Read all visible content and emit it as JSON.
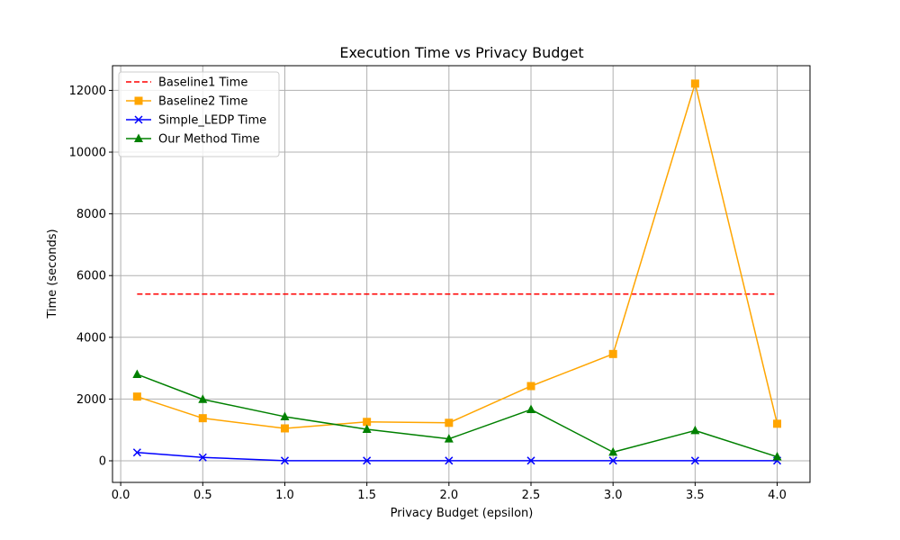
{
  "chart_data": {
    "type": "line",
    "title": "Execution Time vs Privacy Budget",
    "xlabel": "Privacy Budget (epsilon)",
    "ylabel": "Time (seconds)",
    "xlim": [
      -0.05,
      4.2
    ],
    "ylim": [
      -700,
      12800
    ],
    "x_ticks": [
      0.0,
      0.5,
      1.0,
      1.5,
      2.0,
      2.5,
      3.0,
      3.5,
      4.0
    ],
    "x_tick_labels": [
      "0.0",
      "0.5",
      "1.0",
      "1.5",
      "2.0",
      "2.5",
      "3.0",
      "3.5",
      "4.0"
    ],
    "y_ticks": [
      0,
      2000,
      4000,
      6000,
      8000,
      10000,
      12000
    ],
    "y_tick_labels": [
      "0",
      "2000",
      "4000",
      "6000",
      "8000",
      "10000",
      "12000"
    ],
    "grid": true,
    "legend_position": "top-left",
    "x": [
      0.1,
      0.5,
      1.0,
      1.5,
      2.0,
      2.5,
      3.0,
      3.5,
      4.0
    ],
    "series": [
      {
        "name": "Baseline1 Time",
        "color": "#ff0000",
        "line_style": "dashed",
        "marker": "none",
        "x": [
          0.1,
          4.0
        ],
        "values": [
          5400,
          5400
        ]
      },
      {
        "name": "Baseline2 Time",
        "color": "#ffa500",
        "line_style": "solid",
        "marker": "square",
        "values": [
          2080,
          1380,
          1050,
          1260,
          1230,
          2420,
          3460,
          12220,
          1200
        ]
      },
      {
        "name": "Simple_LEDP Time",
        "color": "#0000ff",
        "line_style": "solid",
        "marker": "x",
        "values": [
          270,
          110,
          5,
          5,
          5,
          5,
          5,
          5,
          5
        ]
      },
      {
        "name": "Our Method Time",
        "color": "#008000",
        "line_style": "solid",
        "marker": "triangle",
        "values": [
          2800,
          1990,
          1430,
          1020,
          710,
          1660,
          280,
          980,
          130
        ]
      }
    ]
  }
}
